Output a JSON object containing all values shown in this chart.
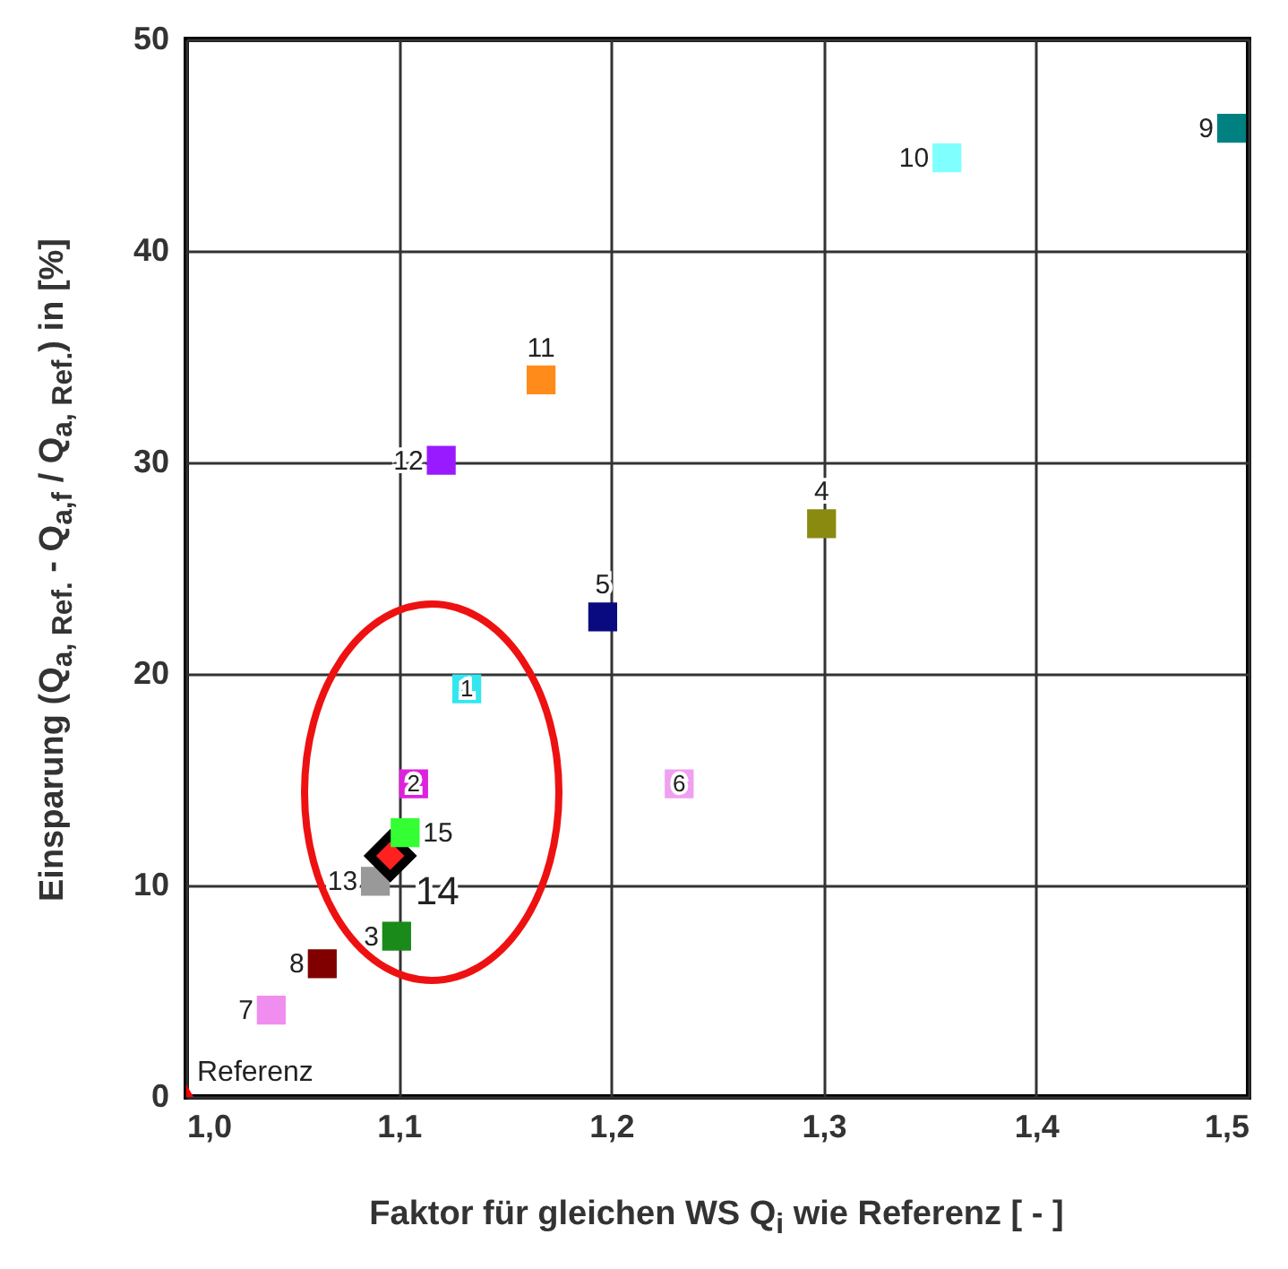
{
  "chart_data": {
    "type": "scatter",
    "xlabel": "Faktor für gleichen WS Q$_{i}$ wie Referenz  [ - ]",
    "ylabel": "Einsparung (Q$_{a, Ref.}$ - Q$_{a,f}$ / Q$_{a, Ref.}$) in [%]",
    "xlim": [
      1.0,
      1.5
    ],
    "xticks": [
      {
        "value": 1.0,
        "label": "1,0"
      },
      {
        "value": 1.1,
        "label": "1,1"
      },
      {
        "value": 1.2,
        "label": "1,2"
      },
      {
        "value": 1.3,
        "label": "1,3"
      },
      {
        "value": 1.4,
        "label": "1,4"
      },
      {
        "value": 1.5,
        "label": "1,5"
      }
    ],
    "ylim": [
      0,
      50
    ],
    "yticks": [
      0,
      10,
      20,
      30,
      40,
      50
    ],
    "grid": true,
    "legend": false,
    "marker": "square",
    "series": [
      {
        "name": "1",
        "color": "#33e6f0",
        "x": [
          1.132
        ],
        "values": [
          19.3
        ]
      },
      {
        "name": "2",
        "color": "#dd22dd",
        "x": [
          1.107
        ],
        "values": [
          14.8
        ]
      },
      {
        "name": "3",
        "color": "#1a8a1a",
        "x": [
          1.099
        ],
        "values": [
          7.6
        ]
      },
      {
        "name": "4",
        "color": "#8a8a10",
        "x": [
          1.299
        ],
        "values": [
          27.1
        ]
      },
      {
        "name": "5",
        "color": "#0a0a80",
        "x": [
          1.196
        ],
        "values": [
          22.7
        ]
      },
      {
        "name": "6",
        "color": "#f0a0f0",
        "x": [
          1.232
        ],
        "values": [
          14.8
        ]
      },
      {
        "name": "7",
        "color": "#f08ef0",
        "x": [
          1.04
        ],
        "values": [
          4.1
        ]
      },
      {
        "name": "8",
        "color": "#800000",
        "x": [
          1.064
        ],
        "values": [
          6.3
        ]
      },
      {
        "name": "9",
        "color": "#008080",
        "x": [
          1.492
        ],
        "values": [
          45.8
        ]
      },
      {
        "name": "10",
        "color": "#80ffff",
        "x": [
          1.358
        ],
        "values": [
          44.4
        ]
      },
      {
        "name": "11",
        "color": "#ff8c1a",
        "x": [
          1.167
        ],
        "values": [
          33.9
        ]
      },
      {
        "name": "12",
        "color": "#9a1aff",
        "x": [
          1.12
        ],
        "values": [
          30.1
        ]
      },
      {
        "name": "13",
        "color": "#999999",
        "x": [
          1.089
        ],
        "values": [
          10.2
        ]
      },
      {
        "name": "14",
        "color": "#ff2020",
        "x": [
          1.096
        ],
        "values": [
          11.4
        ],
        "marker": "diamond"
      },
      {
        "name": "15",
        "color": "#33ff33",
        "x": [
          1.103
        ],
        "values": [
          12.5
        ]
      },
      {
        "name": "Referenz",
        "color": "#ff0000",
        "x": [
          1.0
        ],
        "values": [
          0
        ],
        "marker": "triangle"
      }
    ]
  }
}
